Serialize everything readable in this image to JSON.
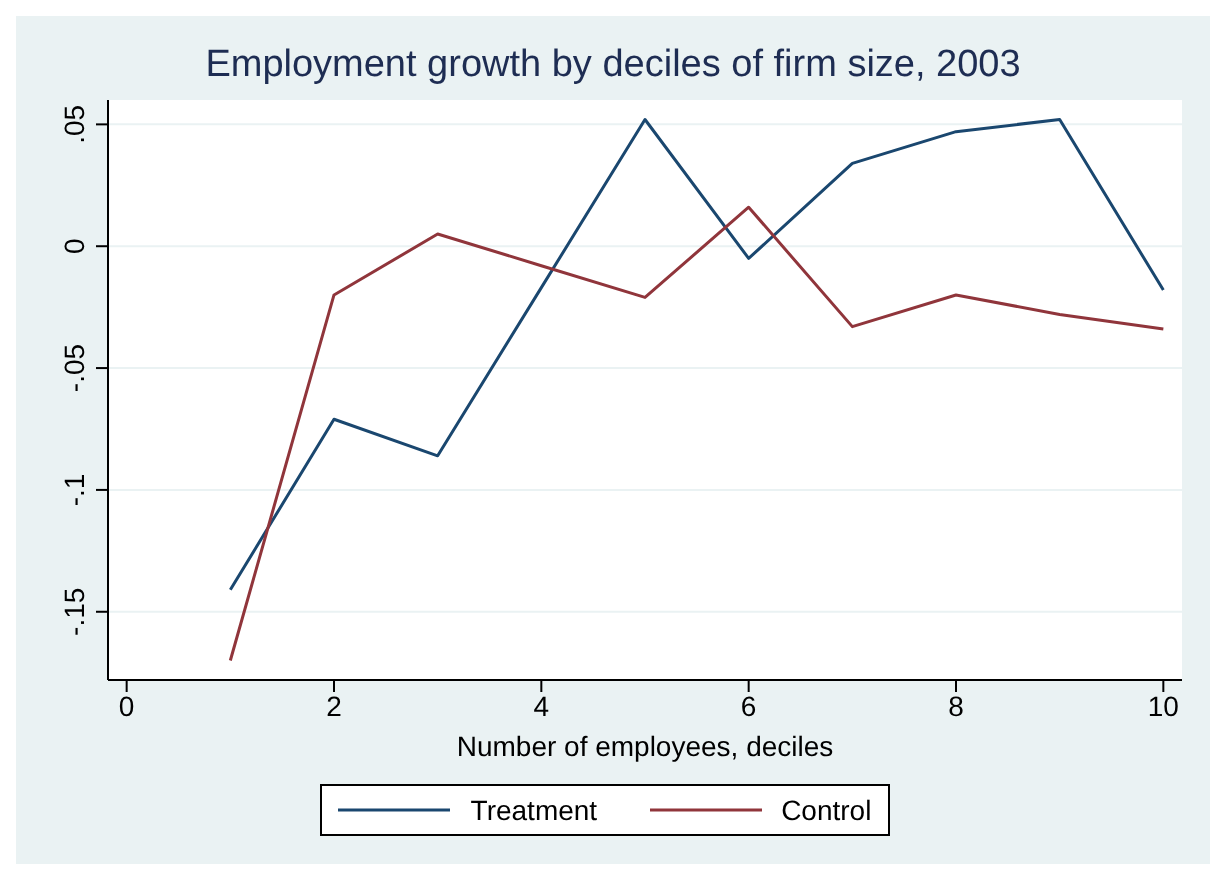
{
  "chart_data": {
    "type": "line",
    "title": "Employment growth by deciles of firm size, 2003",
    "xlabel": "Number of employees, deciles",
    "x": [
      1,
      2,
      3,
      4,
      5,
      6,
      7,
      8,
      9,
      10
    ],
    "series": [
      {
        "name": "Treatment",
        "color": "#1a476f",
        "values": [
          -0.141,
          -0.071,
          -0.086,
          -0.017,
          0.052,
          -0.005,
          0.034,
          0.047,
          0.052,
          -0.018
        ]
      },
      {
        "name": "Control",
        "color": "#90353b",
        "values": [
          -0.17,
          -0.02,
          0.005,
          -0.008,
          -0.021,
          0.016,
          -0.033,
          -0.02,
          -0.028,
          -0.034
        ]
      }
    ],
    "xlim": [
      -0.18,
      10.18
    ],
    "xticks": [
      0,
      2,
      4,
      6,
      8,
      10
    ],
    "ylim": [
      -0.178,
      0.06
    ],
    "yticks": [
      {
        "value": -0.15,
        "label": "-.15"
      },
      {
        "value": -0.1,
        "label": "-.1"
      },
      {
        "value": -0.05,
        "label": "-.05"
      },
      {
        "value": 0,
        "label": "0"
      },
      {
        "value": 0.05,
        "label": ".05"
      }
    ],
    "grid": "y",
    "legend": "bottom",
    "marker": "none",
    "line_style": "solid"
  }
}
